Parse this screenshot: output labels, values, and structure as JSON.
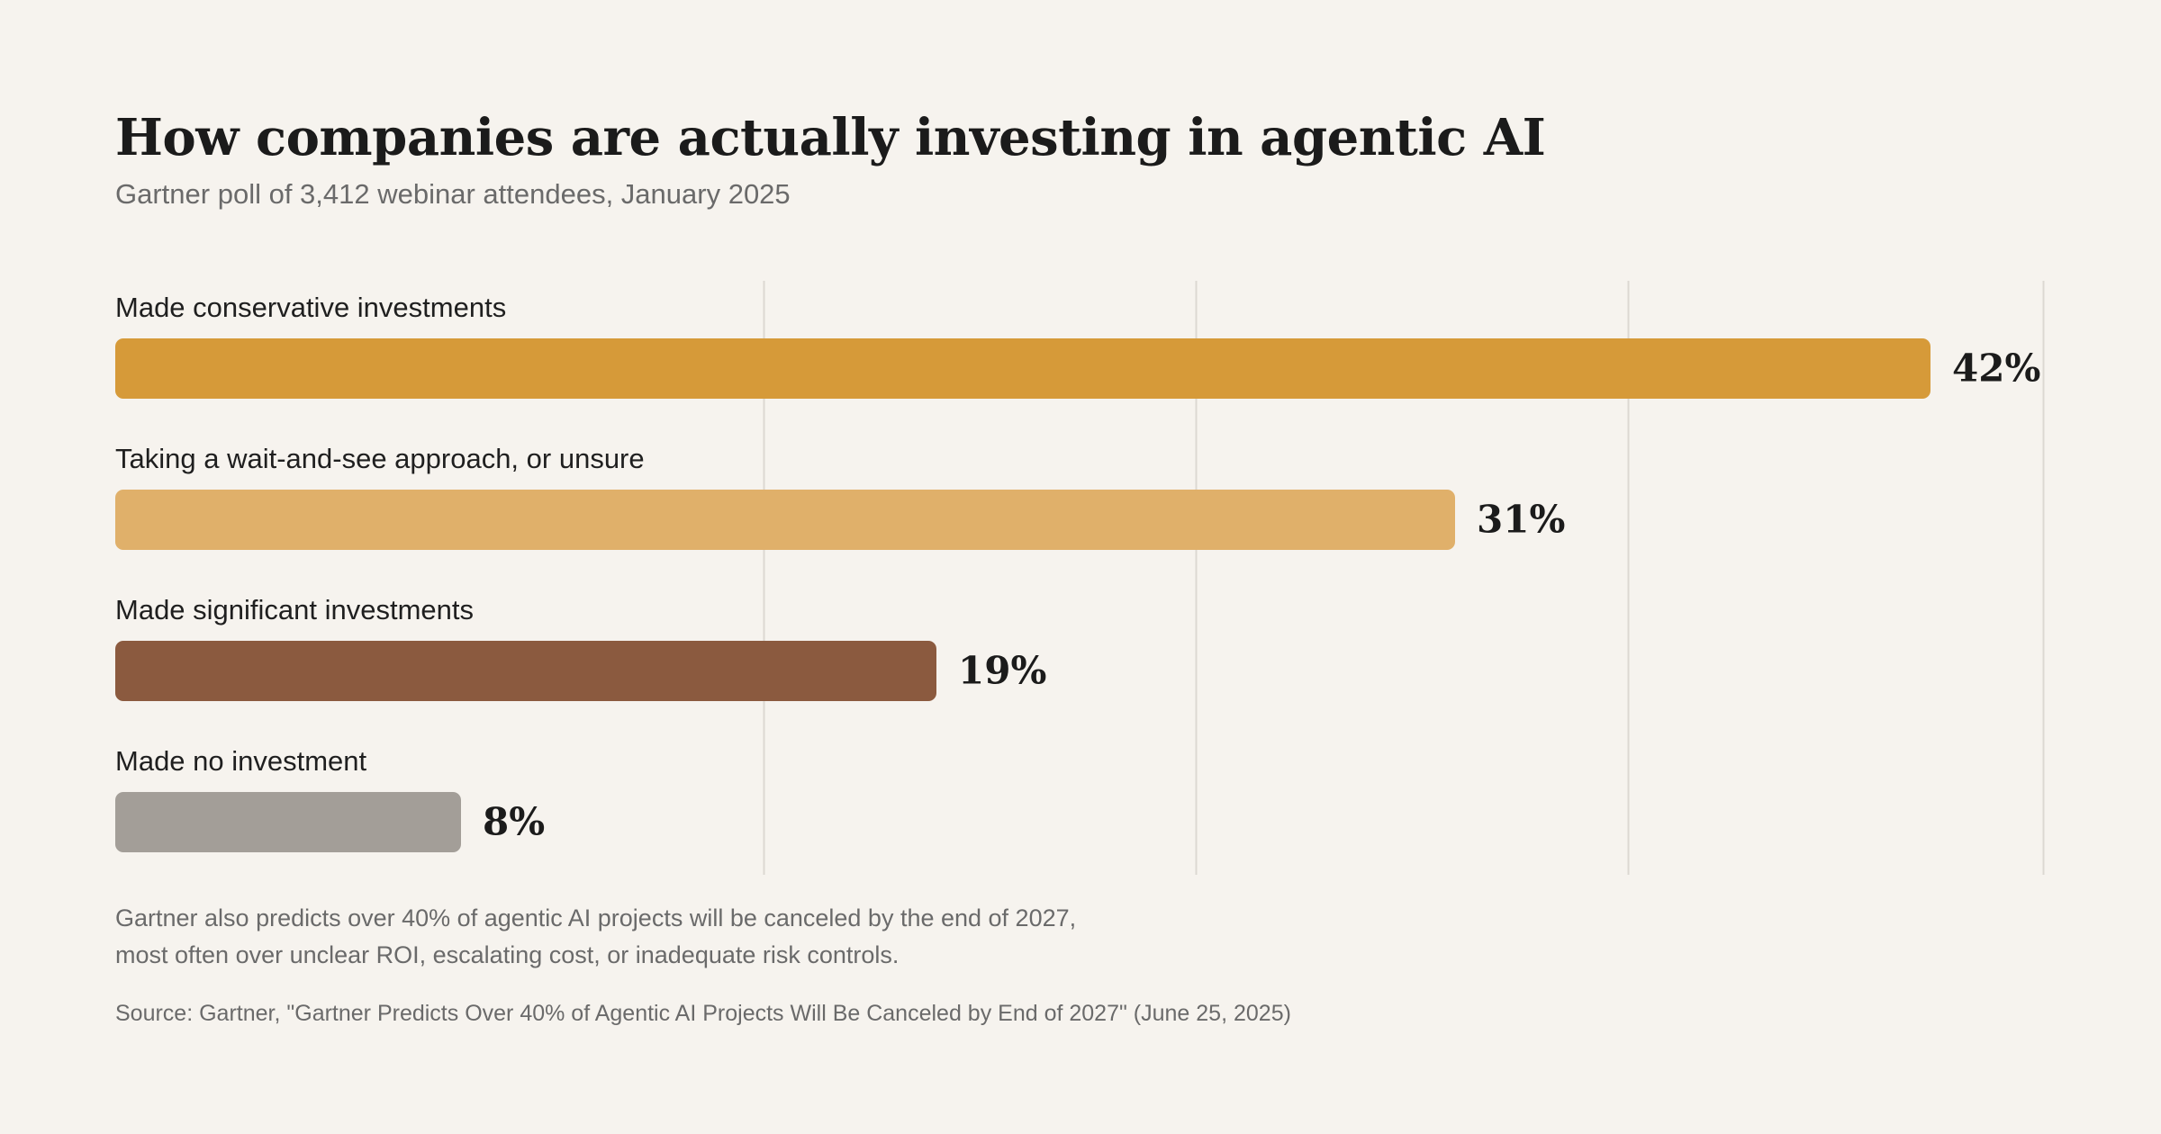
{
  "header": {
    "title": "How companies are actually investing in agentic AI",
    "subtitle": "Gartner poll of 3,412 webinar attendees, January 2025"
  },
  "chart_data": {
    "type": "bar",
    "orientation": "horizontal",
    "categories": [
      "Made conservative investments",
      "Taking a wait-and-see approach, or unsure",
      "Made significant investments",
      "Made no investment"
    ],
    "values": [
      42,
      31,
      19,
      8
    ],
    "value_labels": [
      "42%",
      "31%",
      "19%",
      "8%"
    ],
    "unit": "%",
    "bar_colors": [
      "#d69a39",
      "#e0b06a",
      "#8b5a3f",
      "#a39e98"
    ],
    "xlim": [
      0,
      45
    ],
    "gridlines": [
      15,
      25,
      35,
      44.6
    ],
    "grid": true,
    "legend": "none",
    "title": "",
    "xlabel": "",
    "ylabel": ""
  },
  "footer": {
    "note_line1": "Gartner also predicts over 40% of agentic AI projects will be canceled by the end of 2027,",
    "note_line2": "most often over unclear ROI, escalating cost, or inadequate risk controls.",
    "source": "Source: Gartner, \"Gartner Predicts Over 40% of Agentic AI Projects Will Be Canceled by End of 2027\" (June 25, 2025)"
  },
  "colors": {
    "background": "#f6f3ee",
    "gridline": "#dcd8d2",
    "text": "#1f1f1f",
    "muted": "#6a6a6a"
  }
}
